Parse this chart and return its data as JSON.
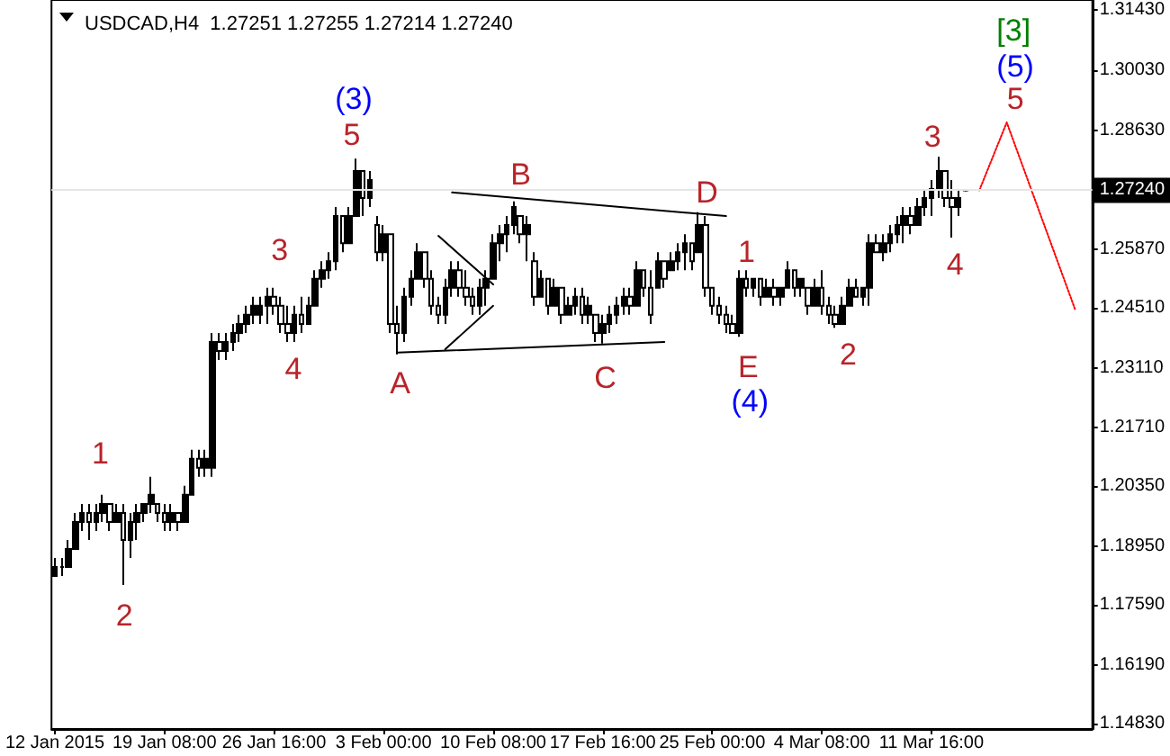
{
  "chart_data": {
    "type": "candlestick",
    "title": "USDCAD,H4  1.27251 1.27255 1.27214 1.27240",
    "color": "#000000",
    "marker": "none",
    "categories": [
      "12 Jan 2015",
      null,
      null,
      null,
      null,
      null,
      null,
      null,
      null,
      null,
      null,
      null,
      null,
      null,
      null,
      null,
      "19 Jan 08:00",
      null,
      null,
      null,
      null,
      null,
      null,
      null,
      null,
      null,
      null,
      null,
      null,
      null,
      null,
      null,
      "26 Jan 16:00",
      null,
      null,
      null,
      null,
      null,
      null,
      null,
      null,
      null,
      null,
      null,
      null,
      null,
      null,
      null,
      "3 Feb 00:00",
      null,
      null,
      null,
      null,
      null,
      null,
      null,
      null,
      null,
      null,
      null,
      null,
      null,
      null,
      null,
      "10 Feb 08:00",
      null,
      null,
      null,
      null,
      null,
      null,
      null,
      null,
      null,
      null,
      null,
      null,
      null,
      null,
      null,
      "17 Feb 16:00",
      null,
      null,
      null,
      null,
      null,
      null,
      null,
      null,
      null,
      null,
      null,
      null,
      null,
      null,
      null,
      "25 Feb 00:00",
      null,
      null,
      null,
      null,
      null,
      null,
      null,
      null,
      null,
      null,
      null,
      null,
      null,
      null,
      null,
      "4 Mar 08:00",
      null,
      null,
      null,
      null,
      null,
      null,
      null,
      null,
      null,
      null,
      null,
      null,
      null,
      null,
      null,
      "11 Mar 16:00",
      null,
      null,
      null,
      null,
      null,
      null,
      null,
      null,
      null,
      null,
      null,
      null,
      null,
      null,
      null,
      null,
      null,
      null,
      null,
      null,
      null,
      null,
      null
    ],
    "ohlc": [
      [
        1.1826,
        1.1868,
        1.1826,
        1.1847
      ],
      [
        1.1847,
        1.1868,
        1.1826,
        1.1847
      ],
      [
        1.1847,
        1.191,
        1.1847,
        1.1889
      ],
      [
        1.1889,
        1.1973,
        1.1889,
        1.1952
      ],
      [
        1.1952,
        1.1994,
        1.1931,
        1.1973
      ],
      [
        1.1973,
        1.1994,
        1.191,
        1.1952
      ],
      [
        1.1952,
        1.1994,
        1.1931,
        1.1973
      ],
      [
        1.1973,
        1.2015,
        1.1952,
        1.1994
      ],
      [
        1.1994,
        1.1994,
        1.1931,
        1.1952
      ],
      [
        1.1952,
        1.1994,
        1.1952,
        1.1973
      ],
      [
        1.1973,
        1.1994,
        1.1805,
        1.191
      ],
      [
        1.191,
        1.1973,
        1.1868,
        1.1952
      ],
      [
        1.1952,
        1.1994,
        1.191,
        1.1973
      ],
      [
        1.1973,
        1.1994,
        1.1952,
        1.1994
      ],
      [
        1.1994,
        1.2057,
        1.1973,
        1.2015
      ],
      [
        1.1994,
        1.1994,
        1.1952,
        1.1973
      ],
      [
        1.1973,
        1.1994,
        1.1931,
        1.1952
      ],
      [
        1.1952,
        1.1994,
        1.1931,
        1.1973
      ],
      [
        1.1973,
        1.1973,
        1.1931,
        1.1952
      ],
      [
        1.1952,
        1.2036,
        1.1952,
        1.2015
      ],
      [
        1.2015,
        1.212,
        1.2015,
        1.2099
      ],
      [
        1.2099,
        1.212,
        1.2057,
        1.2078
      ],
      [
        1.2078,
        1.212,
        1.2057,
        1.2099
      ],
      [
        1.2078,
        1.2392,
        1.2057,
        1.2371
      ],
      [
        1.2371,
        1.2392,
        1.2329,
        1.235
      ],
      [
        1.235,
        1.2392,
        1.2329,
        1.2371
      ],
      [
        1.2371,
        1.2413,
        1.235,
        1.2392
      ],
      [
        1.2392,
        1.2434,
        1.2371,
        1.2413
      ],
      [
        1.2413,
        1.2455,
        1.2392,
        1.2434
      ],
      [
        1.2434,
        1.2476,
        1.2413,
        1.2455
      ],
      [
        1.2434,
        1.2476,
        1.2413,
        1.2455
      ],
      [
        1.2455,
        1.2497,
        1.2413,
        1.2476
      ],
      [
        1.2476,
        1.2497,
        1.2434,
        1.2455
      ],
      [
        1.2455,
        1.2476,
        1.2392,
        1.2413
      ],
      [
        1.2413,
        1.2455,
        1.2371,
        1.2392
      ],
      [
        1.2392,
        1.2455,
        1.2371,
        1.2434
      ],
      [
        1.2434,
        1.2476,
        1.2392,
        1.2413
      ],
      [
        1.2413,
        1.2476,
        1.2413,
        1.2455
      ],
      [
        1.2455,
        1.2538,
        1.2455,
        1.2518
      ],
      [
        1.2518,
        1.2559,
        1.2497,
        1.2538
      ],
      [
        1.2538,
        1.258,
        1.2518,
        1.2559
      ],
      [
        1.2559,
        1.2685,
        1.2538,
        1.2664
      ],
      [
        1.2664,
        1.2664,
        1.258,
        1.2601
      ],
      [
        1.2601,
        1.2685,
        1.2601,
        1.2664
      ],
      [
        1.2664,
        1.2798,
        1.2664,
        1.2769
      ],
      [
        1.2769,
        1.2769,
        1.2664,
        1.2706
      ],
      [
        1.2706,
        1.2769,
        1.2685,
        1.2748
      ],
      [
        1.2643,
        1.2664,
        1.2559,
        1.258
      ],
      [
        1.258,
        1.2643,
        1.2559,
        1.2622
      ],
      [
        1.2622,
        1.2622,
        1.2392,
        1.2413
      ],
      [
        1.2413,
        1.2455,
        1.2342,
        1.2392
      ],
      [
        1.2392,
        1.2497,
        1.2371,
        1.2476
      ],
      [
        1.2476,
        1.2538,
        1.2455,
        1.2518
      ],
      [
        1.2518,
        1.2601,
        1.2518,
        1.258
      ],
      [
        1.258,
        1.258,
        1.2497,
        1.2518
      ],
      [
        1.2518,
        1.2538,
        1.2434,
        1.2455
      ],
      [
        1.2455,
        1.2476,
        1.2413,
        1.2434
      ],
      [
        1.2434,
        1.2518,
        1.2413,
        1.2497
      ],
      [
        1.2497,
        1.2559,
        1.2476,
        1.2538
      ],
      [
        1.2538,
        1.2559,
        1.2476,
        1.2497
      ],
      [
        1.2497,
        1.2538,
        1.2455,
        1.2476
      ],
      [
        1.2476,
        1.2497,
        1.2434,
        1.2455
      ],
      [
        1.2455,
        1.2518,
        1.2434,
        1.2497
      ],
      [
        1.2497,
        1.2538,
        1.2455,
        1.2518
      ],
      [
        1.2518,
        1.2622,
        1.2518,
        1.2601
      ],
      [
        1.2601,
        1.2643,
        1.2559,
        1.2622
      ],
      [
        1.2622,
        1.2664,
        1.258,
        1.2643
      ],
      [
        1.2643,
        1.2698,
        1.2622,
        1.2685
      ],
      [
        1.2664,
        1.2664,
        1.2601,
        1.2622
      ],
      [
        1.2622,
        1.2664,
        1.2559,
        1.2643
      ],
      [
        1.2559,
        1.258,
        1.2455,
        1.2476
      ],
      [
        1.2476,
        1.2538,
        1.2476,
        1.2518
      ],
      [
        1.2518,
        1.2518,
        1.2434,
        1.2455
      ],
      [
        1.2455,
        1.2518,
        1.2455,
        1.2497
      ],
      [
        1.2497,
        1.2497,
        1.2413,
        1.2434
      ],
      [
        1.2434,
        1.2476,
        1.2434,
        1.2455
      ],
      [
        1.2455,
        1.2497,
        1.2434,
        1.2476
      ],
      [
        1.2476,
        1.2497,
        1.2413,
        1.2434
      ],
      [
        1.2434,
        1.2476,
        1.2413,
        1.2455
      ],
      [
        1.2434,
        1.2434,
        1.2371,
        1.2392
      ],
      [
        1.2392,
        1.2434,
        1.2367,
        1.2413
      ],
      [
        1.2413,
        1.2455,
        1.2392,
        1.2434
      ],
      [
        1.2434,
        1.2476,
        1.2413,
        1.2455
      ],
      [
        1.2455,
        1.2497,
        1.2434,
        1.2476
      ],
      [
        1.2476,
        1.2497,
        1.2434,
        1.2455
      ],
      [
        1.2455,
        1.2559,
        1.2455,
        1.2538
      ],
      [
        1.2538,
        1.2538,
        1.2476,
        1.2497
      ],
      [
        1.2497,
        1.2538,
        1.2413,
        1.2434
      ],
      [
        1.2497,
        1.258,
        1.2497,
        1.2559
      ],
      [
        1.2559,
        1.2559,
        1.2497,
        1.2518
      ],
      [
        1.2538,
        1.258,
        1.2538,
        1.2559
      ],
      [
        1.2559,
        1.2601,
        1.2538,
        1.258
      ],
      [
        1.258,
        1.2622,
        1.2538,
        1.2601
      ],
      [
        1.2601,
        1.2601,
        1.2538,
        1.2559
      ],
      [
        1.258,
        1.2673,
        1.258,
        1.2643
      ],
      [
        1.2643,
        1.2664,
        1.2476,
        1.2497
      ],
      [
        1.2497,
        1.2497,
        1.2434,
        1.2455
      ],
      [
        1.2455,
        1.2476,
        1.2413,
        1.2434
      ],
      [
        1.2434,
        1.2455,
        1.2392,
        1.2413
      ],
      [
        1.2413,
        1.2434,
        1.2392,
        1.2392
      ],
      [
        1.2392,
        1.2538,
        1.2383,
        1.2518
      ],
      [
        1.2518,
        1.2538,
        1.2476,
        1.2497
      ],
      [
        1.2497,
        1.2518,
        1.2476,
        1.2518
      ],
      [
        1.2518,
        1.2518,
        1.2455,
        1.2476
      ],
      [
        1.2476,
        1.2518,
        1.2476,
        1.2497
      ],
      [
        1.2497,
        1.2518,
        1.2455,
        1.2476
      ],
      [
        1.2476,
        1.2497,
        1.2455,
        1.2497
      ],
      [
        1.2497,
        1.2559,
        1.2497,
        1.2538
      ],
      [
        1.2538,
        1.2538,
        1.2476,
        1.2497
      ],
      [
        1.2497,
        1.2518,
        1.2476,
        1.2518
      ],
      [
        1.2497,
        1.2497,
        1.2434,
        1.2455
      ],
      [
        1.2455,
        1.2518,
        1.2455,
        1.2497
      ],
      [
        1.2497,
        1.2538,
        1.2434,
        1.2455
      ],
      [
        1.2455,
        1.2476,
        1.2413,
        1.2434
      ],
      [
        1.2434,
        1.2455,
        1.2404,
        1.2413
      ],
      [
        1.2413,
        1.2476,
        1.2413,
        1.2455
      ],
      [
        1.2455,
        1.2518,
        1.2455,
        1.2497
      ],
      [
        1.2497,
        1.2518,
        1.2476,
        1.2476
      ],
      [
        1.2476,
        1.2497,
        1.2455,
        1.2497
      ],
      [
        1.2497,
        1.2622,
        1.2455,
        1.2601
      ],
      [
        1.2601,
        1.2622,
        1.258,
        1.258
      ],
      [
        1.258,
        1.2622,
        1.2559,
        1.2601
      ],
      [
        1.2601,
        1.2643,
        1.258,
        1.2622
      ],
      [
        1.2622,
        1.2664,
        1.2601,
        1.2643
      ],
      [
        1.2643,
        1.2685,
        1.2601,
        1.2664
      ],
      [
        1.2664,
        1.2685,
        1.2622,
        1.2643
      ],
      [
        1.2643,
        1.2706,
        1.2643,
        1.2685
      ],
      [
        1.2685,
        1.2727,
        1.2664,
        1.2706
      ],
      [
        1.2706,
        1.2748,
        1.2664,
        1.2727
      ],
      [
        1.2727,
        1.2802,
        1.2706,
        1.2769
      ],
      [
        1.2769,
        1.2769,
        1.2685,
        1.2706
      ],
      [
        1.2706,
        1.2748,
        1.2614,
        1.2685
      ],
      [
        1.2685,
        1.2727,
        1.2664,
        1.2706
      ],
      [
        1.27251,
        1.27255,
        1.27214,
        1.2724
      ],
      null,
      null,
      null,
      null,
      null,
      null,
      null,
      null,
      null,
      null,
      null,
      null,
      null,
      null,
      null,
      null,
      null,
      null
    ],
    "series": [
      {
        "type": "line",
        "color": "#000000",
        "line_style": "solid",
        "values": [
          null,
          null,
          null,
          null,
          null,
          null,
          null,
          null,
          null,
          null,
          null,
          null,
          null,
          null,
          null,
          null,
          null,
          null,
          null,
          null,
          null,
          null,
          null,
          null,
          null,
          null,
          null,
          null,
          null,
          null,
          null,
          null,
          null,
          null,
          null,
          null,
          null,
          null,
          null,
          null,
          null,
          null,
          null,
          null,
          null,
          null,
          null,
          null,
          null,
          null,
          null,
          null,
          null,
          null,
          null,
          null,
          null,
          null,
          1.2719,
          null,
          null,
          null,
          null,
          null,
          null,
          null,
          null,
          null,
          null,
          null,
          null,
          null,
          null,
          null,
          null,
          null,
          null,
          null,
          null,
          null,
          null,
          null,
          null,
          null,
          null,
          null,
          null,
          null,
          null,
          null,
          null,
          null,
          null,
          null,
          null,
          null,
          null,
          null,
          1.2664,
          null,
          null,
          null,
          null,
          null,
          null,
          null,
          null,
          null,
          null,
          null,
          null,
          null,
          null,
          null,
          null,
          null,
          null,
          null,
          null,
          null,
          null,
          null,
          null,
          null,
          null,
          null,
          null,
          null,
          null,
          null,
          null,
          null,
          null,
          null,
          null,
          null,
          null,
          null,
          null,
          null,
          null,
          null,
          null,
          null,
          null,
          null,
          null,
          null,
          null,
          null,
          null,
          null
        ]
      },
      {
        "type": "line",
        "color": "#000000",
        "line_style": "solid",
        "values": [
          null,
          null,
          null,
          null,
          null,
          null,
          null,
          null,
          null,
          null,
          null,
          null,
          null,
          null,
          null,
          null,
          null,
          null,
          null,
          null,
          null,
          null,
          null,
          null,
          null,
          null,
          null,
          null,
          null,
          null,
          null,
          null,
          null,
          null,
          null,
          null,
          null,
          null,
          null,
          null,
          null,
          null,
          null,
          null,
          null,
          null,
          null,
          null,
          null,
          null,
          1.2346,
          null,
          null,
          null,
          null,
          null,
          null,
          null,
          null,
          null,
          null,
          null,
          null,
          null,
          null,
          null,
          null,
          null,
          null,
          null,
          null,
          null,
          null,
          null,
          null,
          null,
          null,
          null,
          null,
          null,
          null,
          null,
          null,
          null,
          null,
          null,
          null,
          null,
          null,
          1.2371,
          null,
          null,
          null,
          null,
          null,
          null,
          null,
          null,
          null,
          null,
          null,
          null,
          null,
          null,
          null,
          null,
          null,
          null,
          null,
          null,
          null,
          null,
          null,
          null,
          null,
          null,
          null,
          null,
          null,
          null,
          null,
          null,
          null,
          null,
          null,
          null,
          null,
          null,
          null,
          null,
          null,
          null,
          null,
          null,
          null,
          null,
          null,
          null,
          null,
          null,
          null,
          null,
          null,
          null,
          null,
          null,
          null,
          null,
          null,
          null,
          null,
          null
        ]
      },
      {
        "type": "line",
        "color": "#000000",
        "line_style": "solid",
        "values": [
          null,
          null,
          null,
          null,
          null,
          null,
          null,
          null,
          null,
          null,
          null,
          null,
          null,
          null,
          null,
          null,
          null,
          null,
          null,
          null,
          null,
          null,
          null,
          null,
          null,
          null,
          null,
          null,
          null,
          null,
          null,
          null,
          null,
          null,
          null,
          null,
          null,
          null,
          null,
          null,
          null,
          null,
          null,
          null,
          null,
          null,
          null,
          null,
          null,
          null,
          null,
          null,
          null,
          null,
          null,
          null,
          1.2618,
          null,
          null,
          null,
          null,
          null,
          null,
          null,
          1.2505,
          null,
          null,
          null,
          null,
          null,
          null,
          null,
          null,
          null,
          null,
          null,
          null,
          null,
          null,
          null,
          null,
          null,
          null,
          null,
          null,
          null,
          null,
          null,
          null,
          null,
          null,
          null,
          null,
          null,
          null,
          null,
          null,
          null,
          null,
          null,
          null,
          null,
          null,
          null,
          null,
          null,
          null,
          null,
          null,
          null,
          null,
          null,
          null,
          null,
          null,
          null,
          null,
          null,
          null,
          null,
          null,
          null,
          null,
          null,
          null,
          null,
          null,
          null,
          null,
          null,
          null,
          null,
          null,
          null,
          null,
          null,
          null,
          null,
          null,
          null,
          null,
          null,
          null,
          null,
          null,
          null,
          null,
          null,
          null,
          null,
          null,
          null
        ]
      },
      {
        "type": "line",
        "color": "#000000",
        "line_style": "solid",
        "values": [
          null,
          null,
          null,
          null,
          null,
          null,
          null,
          null,
          null,
          null,
          null,
          null,
          null,
          null,
          null,
          null,
          null,
          null,
          null,
          null,
          null,
          null,
          null,
          null,
          null,
          null,
          null,
          null,
          null,
          null,
          null,
          null,
          null,
          null,
          null,
          null,
          null,
          null,
          null,
          null,
          null,
          null,
          null,
          null,
          null,
          null,
          null,
          null,
          null,
          null,
          null,
          null,
          null,
          null,
          null,
          null,
          null,
          1.2354,
          null,
          null,
          null,
          null,
          null,
          null,
          1.2455,
          null,
          null,
          null,
          null,
          null,
          null,
          null,
          null,
          null,
          null,
          null,
          null,
          null,
          null,
          null,
          null,
          null,
          null,
          null,
          null,
          null,
          null,
          null,
          null,
          null,
          null,
          null,
          null,
          null,
          null,
          null,
          null,
          null,
          null,
          null,
          null,
          null,
          null,
          null,
          null,
          null,
          null,
          null,
          null,
          null,
          null,
          null,
          null,
          null,
          null,
          null,
          null,
          null,
          null,
          null,
          null,
          null,
          null,
          null,
          null,
          null,
          null,
          null,
          null,
          null,
          null,
          null,
          null,
          null,
          null,
          null,
          null,
          null,
          null,
          null,
          null,
          null,
          null,
          null,
          null,
          null,
          null,
          null,
          null,
          null,
          null,
          null
        ]
      },
      {
        "type": "line",
        "color": "#ff0000",
        "line_style": "dotted",
        "values": [
          null,
          null,
          null,
          null,
          null,
          null,
          null,
          null,
          null,
          null,
          null,
          null,
          null,
          null,
          null,
          null,
          null,
          null,
          null,
          null,
          null,
          null,
          null,
          null,
          null,
          null,
          null,
          null,
          null,
          null,
          null,
          null,
          null,
          null,
          null,
          null,
          null,
          null,
          null,
          null,
          null,
          null,
          null,
          null,
          null,
          null,
          null,
          null,
          null,
          null,
          null,
          null,
          null,
          null,
          null,
          null,
          null,
          null,
          null,
          null,
          null,
          null,
          null,
          null,
          null,
          null,
          null,
          null,
          null,
          null,
          null,
          null,
          null,
          null,
          null,
          null,
          null,
          null,
          null,
          null,
          null,
          null,
          null,
          null,
          null,
          null,
          null,
          null,
          null,
          null,
          null,
          null,
          null,
          null,
          null,
          null,
          null,
          null,
          null,
          null,
          null,
          null,
          null,
          null,
          null,
          null,
          null,
          null,
          null,
          null,
          null,
          null,
          null,
          null,
          null,
          null,
          null,
          null,
          null,
          null,
          null,
          null,
          null,
          null,
          null,
          null,
          null,
          null,
          null,
          null,
          null,
          null,
          null,
          null,
          null,
          1.2724,
          null,
          null,
          null,
          1.2882,
          null,
          null,
          null,
          null,
          null,
          null,
          null,
          null,
          null,
          1.2446,
          null,
          null
        ]
      }
    ],
    "ylim": [
      1.147,
      1.3167
    ],
    "yticks": [
      {
        "value": 1.1483,
        "label": "1.14830"
      },
      {
        "value": 1.1619,
        "label": "1.16190"
      },
      {
        "value": 1.1759,
        "label": "1.17590"
      },
      {
        "value": 1.1895,
        "label": "1.18950"
      },
      {
        "value": 1.2035,
        "label": "1.20350"
      },
      {
        "value": 1.2171,
        "label": "1.21710"
      },
      {
        "value": 1.2311,
        "label": "1.23110"
      },
      {
        "value": 1.2451,
        "label": "1.24510"
      },
      {
        "value": 1.2587,
        "label": "1.25870"
      },
      {
        "value": 1.2863,
        "label": "1.28630"
      },
      {
        "value": 1.3003,
        "label": "1.30030"
      },
      {
        "value": 1.3143,
        "label": "1.31430"
      }
    ],
    "ref_lines": [
      {
        "axis": "y",
        "value": 1.2724,
        "label": "1.27240",
        "color": "#e6e6e6"
      }
    ],
    "annotations": [
      "1",
      "2",
      "3",
      "4",
      "(3)",
      "5",
      "A",
      "B",
      "C",
      "D",
      "E",
      "(4)",
      "1",
      "2",
      "3",
      "4",
      "5",
      "(5)",
      "[3]"
    ]
  }
}
